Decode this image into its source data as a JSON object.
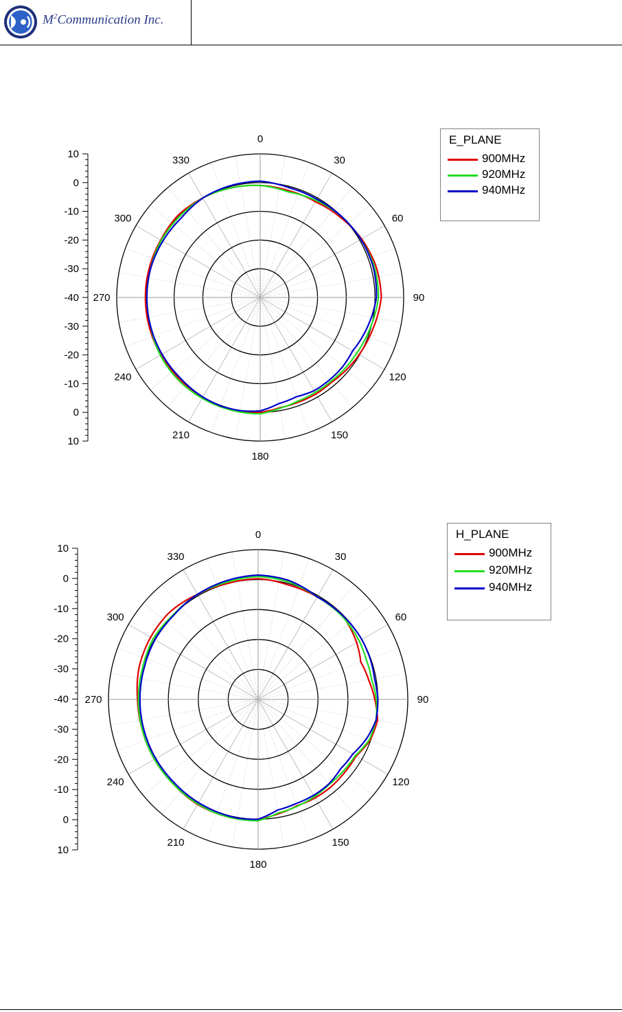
{
  "header": {
    "company_prefix": "M",
    "company_sup": "2",
    "company_rest": "Communication Inc."
  },
  "colors": {
    "red": "#e00000",
    "green": "#22dd22",
    "blue": "#0000cc",
    "brand": "#2a3a8a"
  },
  "chart_data": [
    {
      "type": "polar",
      "legend_title": "E_PLANE",
      "radial_ticks": [
        "10",
        "0",
        "-10",
        "-20",
        "-30",
        "-40",
        "-30",
        "-20",
        "-10",
        "0",
        "10"
      ],
      "r_range": [
        -40,
        10
      ],
      "r_rings": [
        -30,
        -20,
        -10,
        0,
        10
      ],
      "angle_labels": [
        "0",
        "30",
        "60",
        "90",
        "120",
        "150",
        "180",
        "210",
        "240",
        "270",
        "300",
        "330"
      ],
      "series": [
        {
          "name": "900MHz",
          "color": "#e00000",
          "angles": [
            0,
            15,
            30,
            45,
            60,
            75,
            90,
            105,
            120,
            130,
            140,
            150,
            160,
            170,
            180,
            190,
            200,
            210,
            225,
            240,
            255,
            270,
            285,
            300,
            315,
            330,
            345
          ],
          "values": [
            -1,
            -1.5,
            -1.5,
            -0.5,
            0.8,
            1.8,
            2.2,
            0.8,
            -0.2,
            -0.8,
            -1.4,
            -1.2,
            -1.2,
            -1,
            0,
            0.3,
            0.5,
            0.2,
            0,
            0,
            0,
            0,
            0,
            0,
            0.5,
            0,
            -0.5
          ]
        },
        {
          "name": "920MHz",
          "color": "#22dd22",
          "angles": [
            0,
            15,
            30,
            45,
            60,
            75,
            90,
            105,
            120,
            130,
            140,
            150,
            160,
            170,
            180,
            190,
            200,
            210,
            225,
            240,
            255,
            270,
            285,
            300,
            315,
            330,
            345
          ],
          "values": [
            -1,
            -2,
            -1,
            0,
            0.5,
            1.2,
            1.2,
            -0.2,
            -1.2,
            -1.5,
            -1.8,
            -1.8,
            -1.6,
            -0.8,
            0.5,
            0.5,
            0.5,
            0.5,
            0.5,
            0.2,
            -0.5,
            -0.5,
            -0.5,
            -0.2,
            -0.2,
            0,
            -0.5
          ]
        },
        {
          "name": "940MHz",
          "color": "#0000cc",
          "angles": [
            0,
            15,
            30,
            45,
            60,
            75,
            90,
            105,
            120,
            130,
            140,
            150,
            160,
            170,
            180,
            190,
            200,
            210,
            225,
            240,
            255,
            270,
            285,
            300,
            315,
            330,
            345
          ],
          "values": [
            0.5,
            -0.5,
            -0.5,
            0,
            0.5,
            0.8,
            0.5,
            -1.2,
            -2.8,
            -2.5,
            -2.5,
            -2.5,
            -3.2,
            -2.5,
            -0.5,
            0,
            0.2,
            0,
            -0.5,
            -0.5,
            -0.5,
            -0.5,
            -0.5,
            -0.8,
            -1,
            0,
            0.3
          ]
        }
      ]
    },
    {
      "type": "polar",
      "legend_title": "H_PLANE",
      "radial_ticks": [
        "10",
        "0",
        "-10",
        "-20",
        "-30",
        "-40",
        "-30",
        "-20",
        "-10",
        "0",
        "10"
      ],
      "r_range": [
        -40,
        10
      ],
      "r_rings": [
        -30,
        -20,
        -10,
        0,
        10
      ],
      "angle_labels": [
        "0",
        "30",
        "60",
        "90",
        "120",
        "150",
        "180",
        "210",
        "240",
        "270",
        "300",
        "330"
      ],
      "series": [
        {
          "name": "900MHz",
          "color": "#e00000",
          "angles": [
            0,
            15,
            30,
            45,
            60,
            70,
            80,
            90,
            100,
            110,
            120,
            130,
            140,
            150,
            160,
            170,
            180,
            190,
            200,
            210,
            225,
            240,
            255,
            270,
            285,
            300,
            315,
            330,
            345
          ],
          "values": [
            0.3,
            -0.5,
            -0.5,
            -0.2,
            -2,
            -3.5,
            -2.5,
            -1,
            0.5,
            -0.2,
            -2.2,
            -2.2,
            -2,
            -2,
            -2.2,
            -1.2,
            0,
            0.5,
            0.5,
            0.5,
            0,
            0,
            0,
            0.3,
            1.2,
            1.5,
            1.5,
            0.5,
            0
          ]
        },
        {
          "name": "920MHz",
          "color": "#22dd22",
          "angles": [
            0,
            15,
            30,
            45,
            60,
            70,
            80,
            90,
            100,
            110,
            120,
            130,
            140,
            150,
            160,
            170,
            180,
            190,
            200,
            210,
            225,
            240,
            255,
            270,
            285,
            300,
            315,
            330,
            345
          ],
          "values": [
            1,
            0.5,
            -0.5,
            -0.5,
            -1,
            -1.5,
            -1.5,
            -0.5,
            0,
            -0.5,
            -2.5,
            -2.8,
            -3,
            -2.5,
            -2,
            -1.5,
            0.5,
            0.5,
            0.5,
            0.3,
            0,
            0,
            0,
            0,
            0,
            0.5,
            0,
            0.5,
            0.5
          ]
        },
        {
          "name": "940MHz",
          "color": "#0000cc",
          "angles": [
            0,
            15,
            30,
            45,
            60,
            70,
            80,
            90,
            100,
            110,
            120,
            130,
            140,
            150,
            160,
            170,
            180,
            190,
            200,
            210,
            225,
            240,
            255,
            270,
            285,
            300,
            315,
            330,
            345
          ],
          "values": [
            1.5,
            1,
            -0.5,
            -0.2,
            0,
            -0.2,
            -0.5,
            0,
            0,
            -1.5,
            -3.5,
            -4,
            -3.2,
            -3,
            -3,
            -2.5,
            0,
            0.2,
            0,
            -0.2,
            -0.5,
            -0.5,
            -0.5,
            -0.5,
            -0.5,
            -0.2,
            -0.2,
            0.5,
            1
          ]
        }
      ]
    }
  ]
}
